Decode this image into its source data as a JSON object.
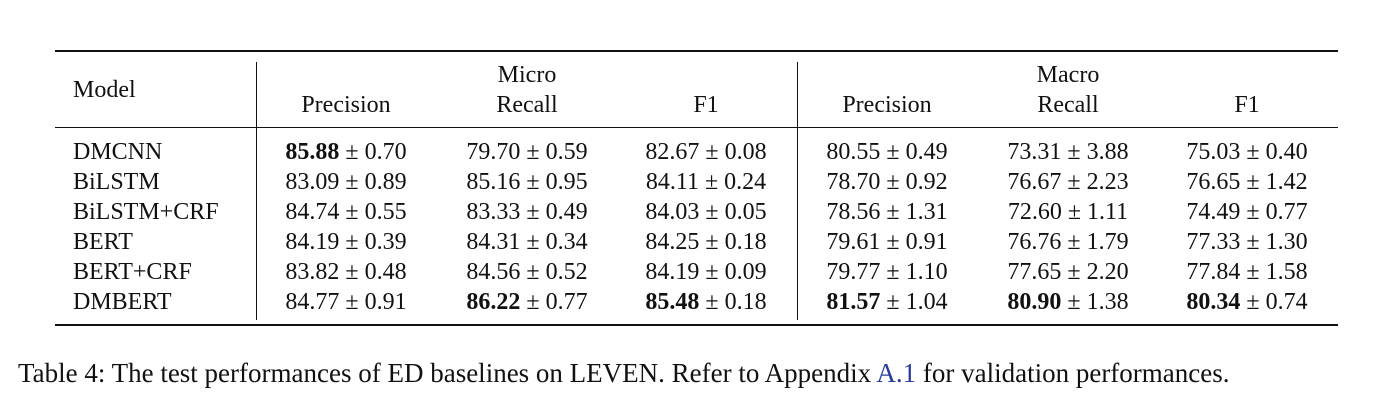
{
  "table": {
    "model_header": "Model",
    "groups": [
      "Micro",
      "Macro"
    ],
    "metrics": [
      "Precision",
      "Recall",
      "F1",
      "Precision",
      "Recall",
      "F1"
    ],
    "plus_minus": "±",
    "rows": [
      {
        "model": "DMCNN",
        "cells": [
          {
            "mean": "85.88",
            "std": "0.70",
            "bold": true
          },
          {
            "mean": "79.70",
            "std": "0.59",
            "bold": false
          },
          {
            "mean": "82.67",
            "std": "0.08",
            "bold": false
          },
          {
            "mean": "80.55",
            "std": "0.49",
            "bold": false
          },
          {
            "mean": "73.31",
            "std": "3.88",
            "bold": false
          },
          {
            "mean": "75.03",
            "std": "0.40",
            "bold": false
          }
        ]
      },
      {
        "model": "BiLSTM",
        "cells": [
          {
            "mean": "83.09",
            "std": "0.89",
            "bold": false
          },
          {
            "mean": "85.16",
            "std": "0.95",
            "bold": false
          },
          {
            "mean": "84.11",
            "std": "0.24",
            "bold": false
          },
          {
            "mean": "78.70",
            "std": "0.92",
            "bold": false
          },
          {
            "mean": "76.67",
            "std": "2.23",
            "bold": false
          },
          {
            "mean": "76.65",
            "std": "1.42",
            "bold": false
          }
        ]
      },
      {
        "model": "BiLSTM+CRF",
        "cells": [
          {
            "mean": "84.74",
            "std": "0.55",
            "bold": false
          },
          {
            "mean": "83.33",
            "std": "0.49",
            "bold": false
          },
          {
            "mean": "84.03",
            "std": "0.05",
            "bold": false
          },
          {
            "mean": "78.56",
            "std": "1.31",
            "bold": false
          },
          {
            "mean": "72.60",
            "std": "1.11",
            "bold": false
          },
          {
            "mean": "74.49",
            "std": "0.77",
            "bold": false
          }
        ]
      },
      {
        "model": "BERT",
        "cells": [
          {
            "mean": "84.19",
            "std": "0.39",
            "bold": false
          },
          {
            "mean": "84.31",
            "std": "0.34",
            "bold": false
          },
          {
            "mean": "84.25",
            "std": "0.18",
            "bold": false
          },
          {
            "mean": "79.61",
            "std": "0.91",
            "bold": false
          },
          {
            "mean": "76.76",
            "std": "1.79",
            "bold": false
          },
          {
            "mean": "77.33",
            "std": "1.30",
            "bold": false
          }
        ]
      },
      {
        "model": "BERT+CRF",
        "cells": [
          {
            "mean": "83.82",
            "std": "0.48",
            "bold": false
          },
          {
            "mean": "84.56",
            "std": "0.52",
            "bold": false
          },
          {
            "mean": "84.19",
            "std": "0.09",
            "bold": false
          },
          {
            "mean": "79.77",
            "std": "1.10",
            "bold": false
          },
          {
            "mean": "77.65",
            "std": "2.20",
            "bold": false
          },
          {
            "mean": "77.84",
            "std": "1.58",
            "bold": false
          }
        ]
      },
      {
        "model": "DMBERT",
        "cells": [
          {
            "mean": "84.77",
            "std": "0.91",
            "bold": false
          },
          {
            "mean": "86.22",
            "std": "0.77",
            "bold": true
          },
          {
            "mean": "85.48",
            "std": "0.18",
            "bold": true
          },
          {
            "mean": "81.57",
            "std": "1.04",
            "bold": true
          },
          {
            "mean": "80.90",
            "std": "1.38",
            "bold": true
          },
          {
            "mean": "80.34",
            "std": "0.74",
            "bold": true
          }
        ]
      }
    ]
  },
  "caption": {
    "before": "Table 4: The test performances of ED baselines on LEVEN. Refer to Appendix ",
    "link": "A.1",
    "after": " for validation performances."
  }
}
